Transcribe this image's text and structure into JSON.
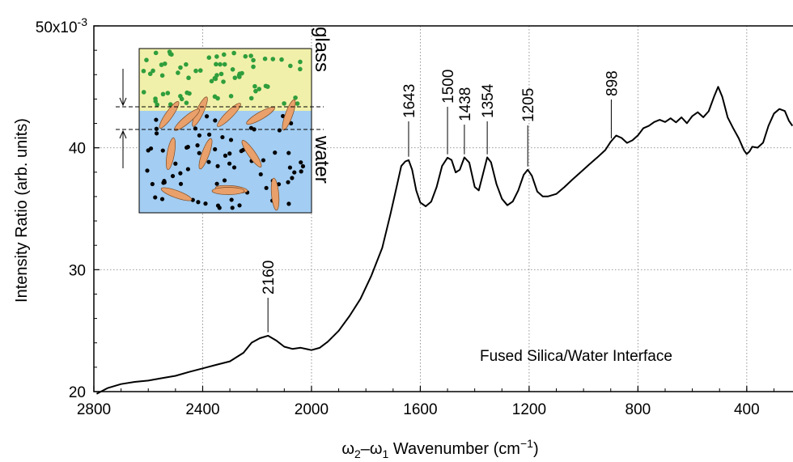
{
  "chart_data": {
    "type": "line",
    "title": "",
    "xlabel_main": "ω",
    "xlabel_sub2": "2",
    "xlabel_dash": "–ω",
    "xlabel_sub1": "1",
    "xlabel_rest": " Wavenumber (cm",
    "xlabel_sup": "−1",
    "xlabel_close": ")",
    "ylabel": "Intensity Ratio (arb. units)",
    "y_top_label_base": "50x10",
    "y_top_label_exp": "-3",
    "xlim": [
      2800,
      230
    ],
    "ylim": [
      0.02,
      0.05
    ],
    "x_reversed": true,
    "grid": true,
    "x_ticks": [
      {
        "value": 2800,
        "label": "2800"
      },
      {
        "value": 2400,
        "label": "2400"
      },
      {
        "value": 2000,
        "label": "2000"
      },
      {
        "value": 1600,
        "label": "1600"
      },
      {
        "value": 1200,
        "label": "1200"
      },
      {
        "value": 800,
        "label": "800"
      },
      {
        "value": 400,
        "label": "400"
      }
    ],
    "y_ticks": [
      {
        "value": 0.02,
        "label": "20"
      },
      {
        "value": 0.03,
        "label": "30"
      },
      {
        "value": 0.04,
        "label": "40"
      },
      {
        "value": 0.05,
        "label": "50x10-3"
      }
    ],
    "series": [
      {
        "x": [
          2790,
          2750,
          2700,
          2650,
          2600,
          2550,
          2500,
          2450,
          2400,
          2350,
          2300,
          2250,
          2220,
          2190,
          2160,
          2130,
          2100,
          2070,
          2040,
          2000,
          1970,
          1940,
          1900,
          1860,
          1820,
          1780,
          1740,
          1710,
          1690,
          1670,
          1655,
          1643,
          1630,
          1615,
          1600,
          1580,
          1560,
          1540,
          1520,
          1500,
          1485,
          1470,
          1455,
          1438,
          1420,
          1400,
          1385,
          1370,
          1354,
          1340,
          1320,
          1300,
          1280,
          1260,
          1240,
          1220,
          1205,
          1190,
          1170,
          1150,
          1130,
          1100,
          1070,
          1040,
          1010,
          980,
          950,
          920,
          900,
          880,
          860,
          840,
          820,
          800,
          780,
          760,
          740,
          720,
          700,
          680,
          660,
          640,
          620,
          600,
          580,
          560,
          540,
          520,
          505,
          490,
          470,
          450,
          430,
          410,
          400,
          390,
          380,
          360,
          340,
          320,
          300,
          280,
          260,
          245,
          232
        ],
        "y": [
          0.0198,
          0.0203,
          0.0206,
          0.0208,
          0.0209,
          0.0211,
          0.0213,
          0.0216,
          0.0219,
          0.0222,
          0.0225,
          0.0232,
          0.024,
          0.0244,
          0.0246,
          0.0242,
          0.0237,
          0.0235,
          0.0236,
          0.0234,
          0.0236,
          0.0241,
          0.025,
          0.0262,
          0.0276,
          0.0295,
          0.0318,
          0.0345,
          0.0365,
          0.0385,
          0.0389,
          0.039,
          0.0382,
          0.0365,
          0.0355,
          0.0352,
          0.0356,
          0.0368,
          0.0385,
          0.0392,
          0.039,
          0.038,
          0.0382,
          0.0392,
          0.0388,
          0.0368,
          0.0365,
          0.0378,
          0.0392,
          0.0388,
          0.037,
          0.0358,
          0.0353,
          0.0356,
          0.0365,
          0.0378,
          0.0382,
          0.0377,
          0.0364,
          0.036,
          0.036,
          0.0362,
          0.0368,
          0.0374,
          0.038,
          0.0386,
          0.0392,
          0.0398,
          0.0405,
          0.041,
          0.0408,
          0.0404,
          0.0406,
          0.041,
          0.0416,
          0.0418,
          0.0421,
          0.0423,
          0.0421,
          0.0424,
          0.0421,
          0.0425,
          0.042,
          0.0426,
          0.0429,
          0.0425,
          0.043,
          0.0442,
          0.045,
          0.0442,
          0.0425,
          0.0416,
          0.0408,
          0.0398,
          0.0395,
          0.0397,
          0.0401,
          0.04,
          0.0404,
          0.0418,
          0.0428,
          0.0432,
          0.043,
          0.0422,
          0.0418
        ]
      }
    ],
    "peak_labels": [
      {
        "label": "2160",
        "x": 2160,
        "y": 0.0246
      },
      {
        "label": "1643",
        "x": 1643,
        "y": 0.039
      },
      {
        "label": "1500",
        "x": 1500,
        "y": 0.0392
      },
      {
        "label": "1438",
        "x": 1438,
        "y": 0.0392
      },
      {
        "label": "1354",
        "x": 1354,
        "y": 0.0392
      },
      {
        "label": "1205",
        "x": 1205,
        "y": 0.0382
      },
      {
        "label": "898",
        "x": 898,
        "y": 0.0405
      }
    ],
    "annotation": "Fused Silica/Water Interface"
  },
  "inset": {
    "top_label": "glass",
    "bottom_label": "water",
    "top_color": "#f1f0aa",
    "bottom_color": "#a3cdf2",
    "dot_top_color": "#2f9e3c",
    "dot_bottom_color": "#000000",
    "molecule_color": "#e9a06b"
  },
  "colors": {
    "line": "#000000",
    "grid": "#888888"
  }
}
